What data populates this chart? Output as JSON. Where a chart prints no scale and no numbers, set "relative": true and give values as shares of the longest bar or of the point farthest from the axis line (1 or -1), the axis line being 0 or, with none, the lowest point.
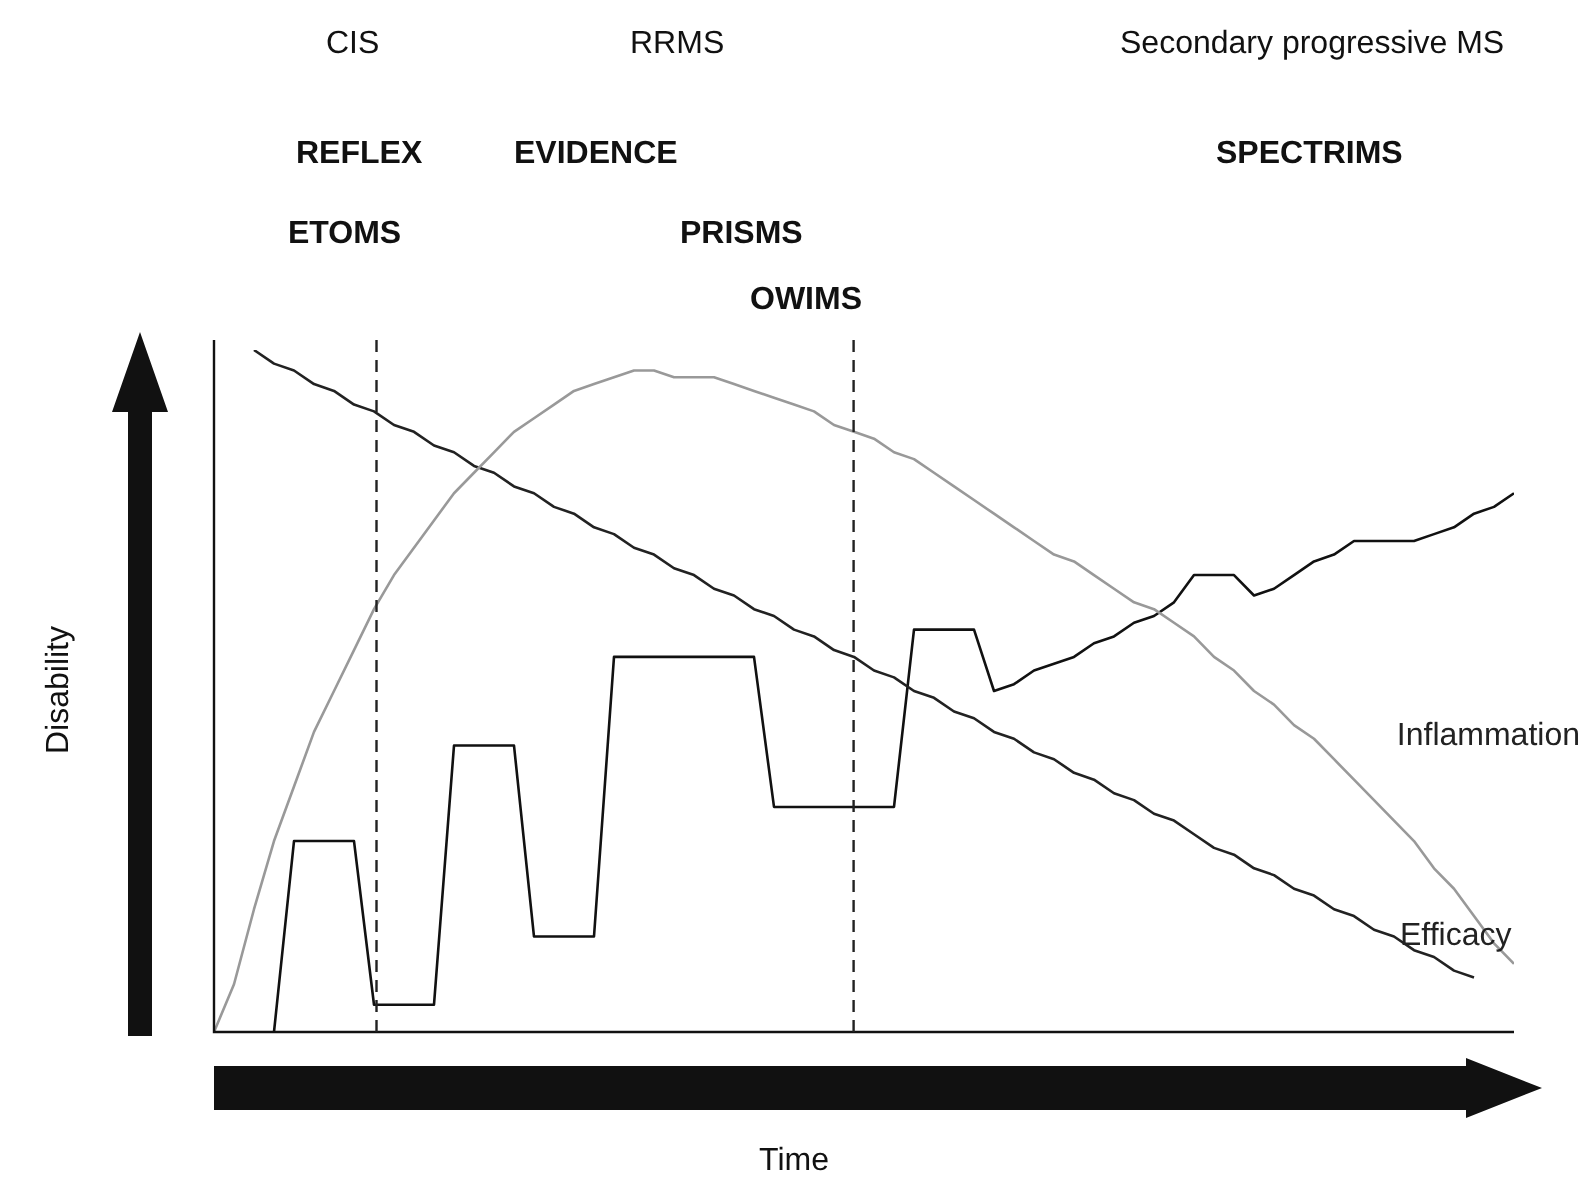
{
  "chart_data": {
    "type": "line",
    "relative": true,
    "xlabel": "Time",
    "ylabel": "Disability",
    "categories": [
      null,
      null,
      null,
      null,
      null,
      null,
      null,
      null,
      null,
      null,
      null,
      null,
      null,
      null,
      null,
      null,
      null,
      null,
      null,
      null,
      null,
      null,
      null,
      null,
      null,
      null,
      null,
      null,
      null,
      null,
      null,
      null,
      null,
      null,
      null,
      null,
      null,
      null,
      null,
      null,
      null,
      null,
      null,
      null,
      null,
      null,
      null,
      null,
      null,
      null,
      null,
      null,
      null,
      null,
      null,
      null,
      null,
      null,
      null,
      null,
      null,
      null,
      null,
      null,
      null,
      null
    ],
    "series": [
      {
        "name": "Inflammation",
        "color": "#999999",
        "values": [
          0,
          0.07,
          0.18,
          0.28,
          0.36,
          0.44,
          0.5,
          0.56,
          0.62,
          0.67,
          0.71,
          0.75,
          0.79,
          0.82,
          0.85,
          0.88,
          0.9,
          0.92,
          0.94,
          0.95,
          0.96,
          0.97,
          0.97,
          0.96,
          0.96,
          0.96,
          0.95,
          0.94,
          0.93,
          0.92,
          0.91,
          0.89,
          0.88,
          0.87,
          0.85,
          0.84,
          0.82,
          0.8,
          0.78,
          0.76,
          0.74,
          0.72,
          0.7,
          0.69,
          0.67,
          0.65,
          0.63,
          0.62,
          0.6,
          0.58,
          0.55,
          0.53,
          0.5,
          0.48,
          0.45,
          0.43,
          0.4,
          0.37,
          0.34,
          0.31,
          0.28,
          0.24,
          0.21,
          0.17,
          0.13,
          0.1
        ]
      },
      {
        "name": "Efficacy",
        "color": "#222222",
        "values": [
          null,
          null,
          1,
          0.98,
          0.97,
          0.95,
          0.94,
          0.92,
          0.91,
          0.89,
          0.88,
          0.86,
          0.85,
          0.83,
          0.82,
          0.8,
          0.79,
          0.77,
          0.76,
          0.74,
          0.73,
          0.71,
          0.7,
          0.68,
          0.67,
          0.65,
          0.64,
          0.62,
          0.61,
          0.59,
          0.58,
          0.56,
          0.55,
          0.53,
          0.52,
          0.5,
          0.49,
          0.47,
          0.46,
          0.44,
          0.43,
          0.41,
          0.4,
          0.38,
          0.37,
          0.35,
          0.34,
          0.32,
          0.31,
          0.29,
          0.27,
          0.26,
          0.24,
          0.23,
          0.21,
          0.2,
          0.18,
          0.17,
          0.15,
          0.14,
          0.12,
          0.11,
          0.09,
          0.08,
          null,
          null
        ]
      },
      {
        "color": "#111111",
        "values": [
          null,
          null,
          null,
          0,
          0.28,
          0.28,
          0.28,
          0.28,
          0.04,
          0.04,
          0.04,
          0.04,
          0.42,
          0.42,
          0.42,
          0.42,
          0.14,
          0.14,
          0.14,
          0.14,
          0.55,
          0.55,
          0.55,
          0.55,
          0.55,
          0.55,
          0.55,
          0.55,
          0.33,
          0.33,
          0.33,
          0.33,
          0.33,
          0.33,
          0.33,
          0.59,
          0.59,
          0.59,
          0.59,
          0.5,
          0.51,
          0.53,
          0.54,
          0.55,
          0.57,
          0.58,
          0.6,
          0.61,
          0.63,
          0.67,
          0.67,
          0.67,
          0.64,
          0.65,
          0.67,
          0.69,
          0.7,
          0.72,
          0.72,
          0.72,
          0.72,
          0.73,
          0.74,
          0.76,
          0.77,
          0.79
        ]
      }
    ],
    "annotations": [
      "CIS",
      "RRMS",
      "Secondary progressive MS",
      "REFLEX",
      "EVIDENCE",
      "SPECTRIMS",
      "ETOMS",
      "PRISMS",
      "OWIMS"
    ],
    "marker": "none",
    "line_style": "solid"
  }
}
